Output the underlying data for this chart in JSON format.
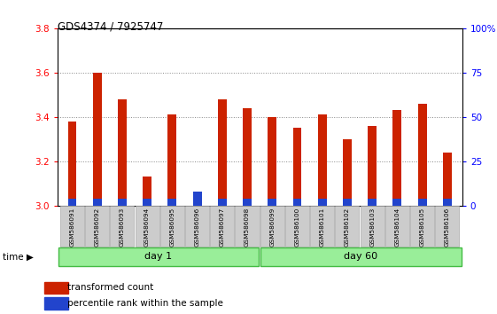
{
  "title": "GDS4374 / 7925747",
  "samples": [
    "GSM586091",
    "GSM586092",
    "GSM586093",
    "GSM586094",
    "GSM586095",
    "GSM586096",
    "GSM586097",
    "GSM586098",
    "GSM586099",
    "GSM586100",
    "GSM586101",
    "GSM586102",
    "GSM586103",
    "GSM586104",
    "GSM586105",
    "GSM586106"
  ],
  "red_values": [
    3.38,
    3.6,
    3.48,
    3.13,
    3.41,
    3.05,
    3.48,
    3.44,
    3.4,
    3.35,
    3.41,
    3.3,
    3.36,
    3.43,
    3.46,
    3.24
  ],
  "blue_values": [
    0.03,
    0.03,
    0.03,
    0.03,
    0.03,
    0.065,
    0.03,
    0.03,
    0.03,
    0.03,
    0.03,
    0.03,
    0.03,
    0.03,
    0.03,
    0.03
  ],
  "day1_count": 8,
  "day60_count": 8,
  "ymin": 3.0,
  "ymax": 3.8,
  "yticks": [
    3.0,
    3.2,
    3.4,
    3.6,
    3.8
  ],
  "right_yticks": [
    0,
    25,
    50,
    75,
    100
  ],
  "right_ytick_labels": [
    "0",
    "25",
    "50",
    "75",
    "100%"
  ],
  "grid_color": "#aaaaaa",
  "bar_width": 0.35,
  "red_color": "#cc2200",
  "blue_color": "#2244cc",
  "day1_label": "day 1",
  "day60_label": "day 60",
  "day_bg_color": "#99ee99",
  "day_edge_color": "#44bb44",
  "tick_bg_color": "#cccccc",
  "legend_red": "transformed count",
  "legend_blue": "percentile rank within the sample"
}
